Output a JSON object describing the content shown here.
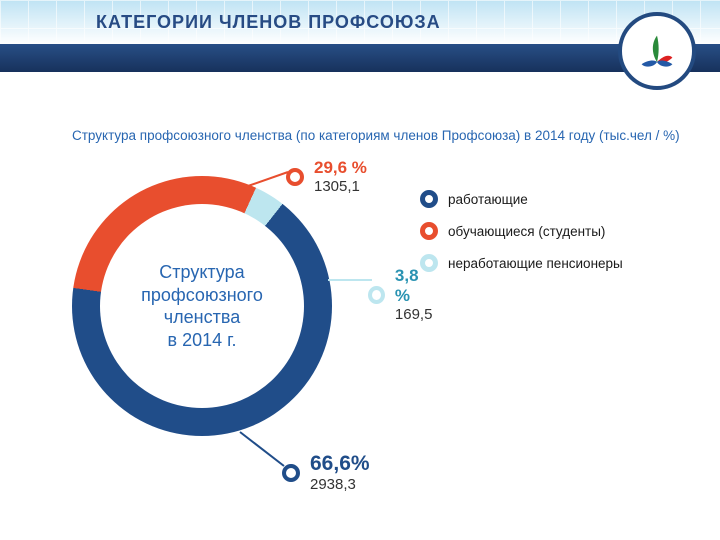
{
  "header": {
    "title": "КАТЕГОРИИ  ЧЛЕНОВ  ПРОФСОЮЗА",
    "subtitle": "Структура профсоюзного членства (по категориям членов Профсоюза) в 2014 году (тыс.чел / %)"
  },
  "chart": {
    "type": "donut",
    "center_label": "Структура\nпрофсоюзного\nчленства\nв 2014 г.",
    "slices": [
      {
        "key": "working",
        "label": "работающие",
        "percent": 66.6,
        "value": 2938.3,
        "color": "#204d89"
      },
      {
        "key": "students",
        "label": "обучающиеся (студенты)",
        "percent": 29.6,
        "value": 1305.1,
        "color": "#e84e2e"
      },
      {
        "key": "pension",
        "label": "неработающие пенсионеры",
        "percent": 3.8,
        "value": 169.5,
        "color": "#bde6ef"
      }
    ],
    "start_angle_deg": -90,
    "donut_thickness_ratio": 0.22,
    "background_color": "#ffffff"
  },
  "callouts": [
    {
      "slice": "students",
      "percent_label": "29,6 %",
      "value_label": "1305,1",
      "color": "#e84e2e"
    },
    {
      "slice": "pension",
      "percent_label": "3,8 %",
      "value_label": "169,5",
      "color": "#bde6ef",
      "percent_color": "#2a93b2"
    },
    {
      "slice": "working",
      "percent_label": "66,6%",
      "value_label": "2938,3",
      "color": "#204d89"
    }
  ],
  "legend": [
    {
      "color": "#204d89",
      "label": "работающие"
    },
    {
      "color": "#e84e2e",
      "label": "обучающиеся (студенты)"
    },
    {
      "color": "#bde6ef",
      "label": "неработающие пенсионеры"
    }
  ],
  "logo": {
    "ring_color": "#234a80",
    "leaf_colors": [
      "#2a8a3a",
      "#d22",
      "#2359a6"
    ]
  }
}
